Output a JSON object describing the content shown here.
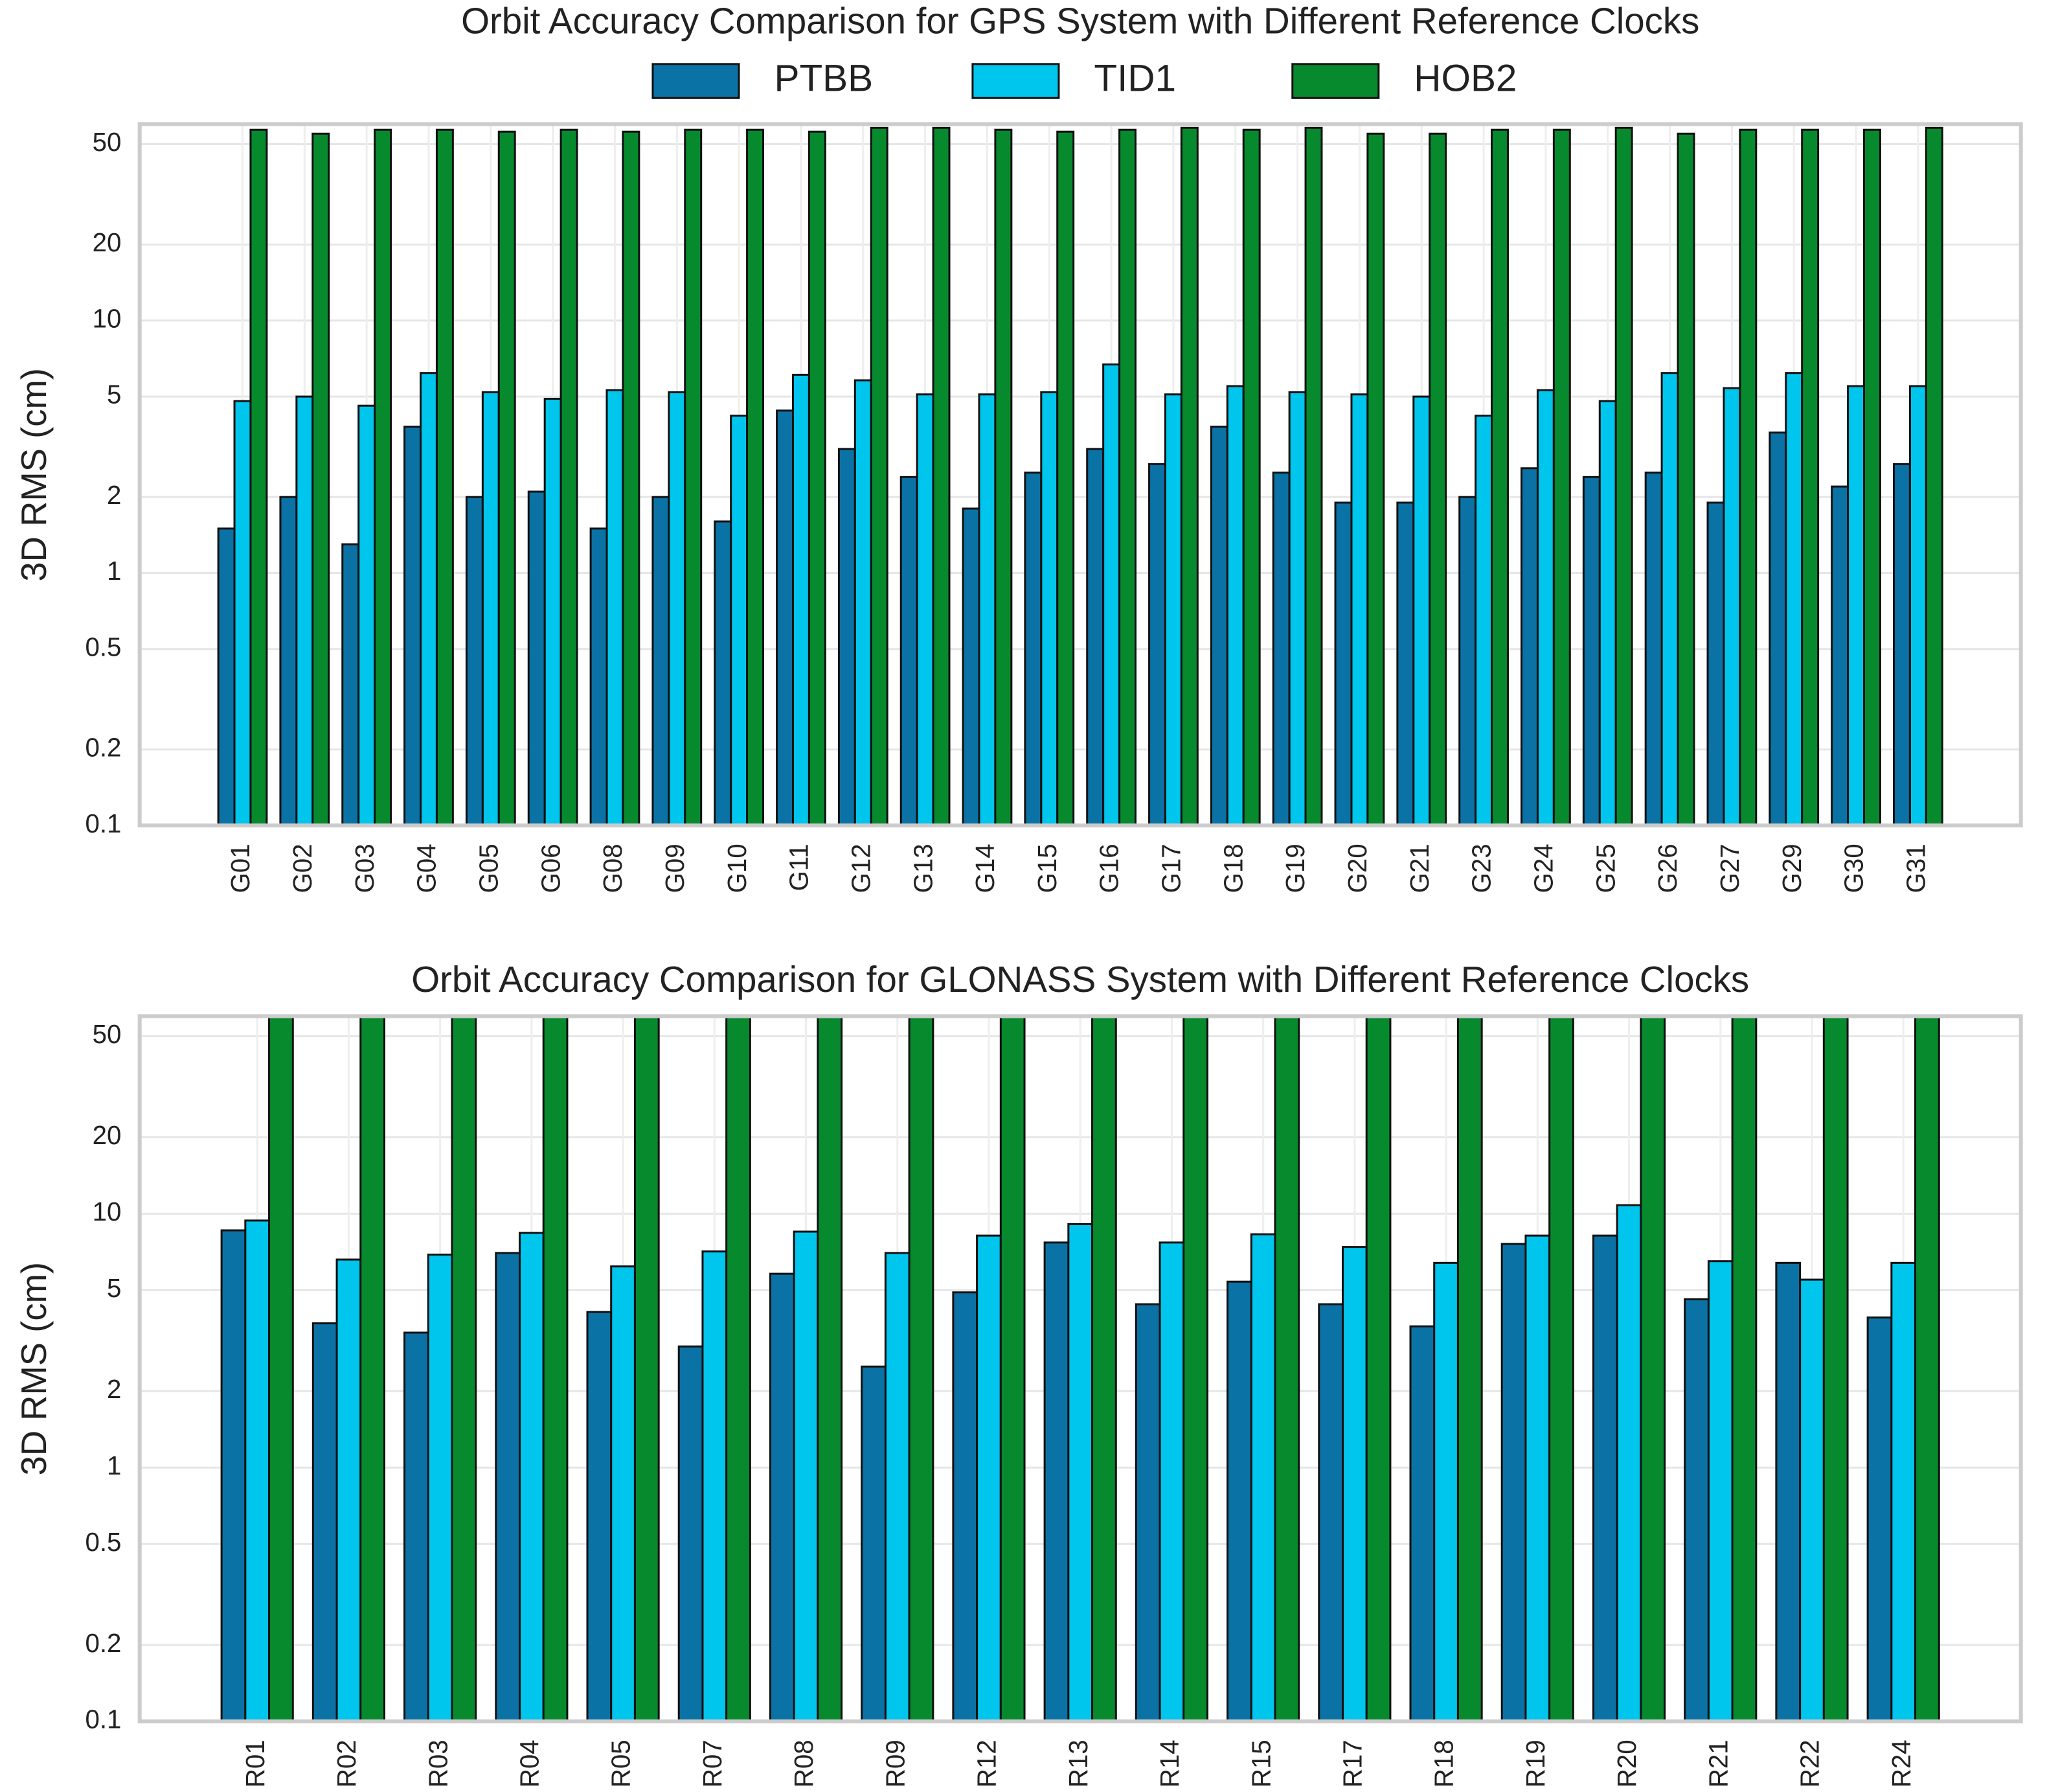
{
  "chart_data": [
    {
      "type": "bar",
      "title": "Orbit Accuracy Comparison for GPS System with Different Reference Clocks",
      "ylabel": "3D RMS (cm)",
      "log_scale": true,
      "grid": true,
      "legend": "top",
      "categories": [
        "G01",
        "G02",
        "G03",
        "G04",
        "G05",
        "G06",
        "G08",
        "G09",
        "G10",
        "G11",
        "G12",
        "G13",
        "G14",
        "G15",
        "G16",
        "G17",
        "G18",
        "G19",
        "G20",
        "G21",
        "G23",
        "G24",
        "G25",
        "G26",
        "G27",
        "G29",
        "G30",
        "G31"
      ],
      "series": [
        {
          "name": "PTBB",
          "color": "#0b72a6",
          "values": [
            1.5,
            2.0,
            1.3,
            3.8,
            2.0,
            2.1,
            1.5,
            2.0,
            1.6,
            4.4,
            3.1,
            2.4,
            1.8,
            2.5,
            3.1,
            2.7,
            3.8,
            2.5,
            1.9,
            1.9,
            2.0,
            2.6,
            2.4,
            2.5,
            1.9,
            3.6,
            2.2,
            2.7
          ]
        },
        {
          "name": "TID1",
          "color": "#00c5ec",
          "values": [
            4.8,
            5.0,
            4.6,
            6.2,
            5.2,
            4.9,
            5.3,
            5.2,
            4.2,
            6.1,
            5.8,
            5.1,
            5.1,
            5.2,
            6.7,
            5.1,
            5.5,
            5.2,
            5.1,
            5.0,
            4.2,
            5.3,
            4.8,
            6.2,
            5.4,
            6.2,
            5.5,
            5.5
          ]
        },
        {
          "name": "HOB2",
          "color": "#078a2e",
          "values": [
            57,
            55,
            57,
            57,
            56,
            57,
            56,
            57,
            57,
            56,
            58,
            58,
            57,
            56,
            57,
            58,
            57,
            58,
            55,
            55,
            57,
            57,
            58,
            55,
            57,
            57,
            57,
            58
          ]
        }
      ],
      "ylim": [
        0.1,
        60
      ],
      "yticks": [
        0.1,
        0.2,
        0.5,
        1,
        2,
        5,
        10,
        20,
        50
      ]
    },
    {
      "type": "bar",
      "title": "Orbit Accuracy Comparison for GLONASS System with Different Reference Clocks",
      "ylabel": "3D RMS (cm)",
      "log_scale": true,
      "grid": true,
      "categories": [
        "R01",
        "R02",
        "R03",
        "R04",
        "R05",
        "R07",
        "R08",
        "R09",
        "R12",
        "R13",
        "R14",
        "R15",
        "R17",
        "R18",
        "R19",
        "R20",
        "R21",
        "R22",
        "R24"
      ],
      "series": [
        {
          "color": "#0b72a6",
          "values": [
            8.6,
            3.7,
            3.4,
            7.0,
            4.1,
            3.0,
            5.8,
            2.5,
            4.9,
            7.7,
            4.4,
            5.4,
            4.4,
            3.6,
            7.6,
            8.2,
            4.6,
            6.4,
            3.9
          ]
        },
        {
          "color": "#00c5ec",
          "values": [
            9.4,
            6.6,
            6.9,
            8.4,
            6.2,
            7.1,
            8.5,
            7.0,
            8.2,
            9.1,
            7.7,
            8.3,
            7.4,
            6.4,
            8.2,
            10.8,
            6.5,
            5.5,
            6.4
          ]
        },
        {
          "color": "#078a2e",
          "values": [
            60,
            60,
            60,
            60,
            60,
            60,
            60,
            60,
            60,
            60,
            60,
            60,
            60,
            60,
            60,
            60,
            60,
            60,
            60
          ]
        }
      ],
      "ylim": [
        0.1,
        60
      ],
      "yticks": [
        0.1,
        0.2,
        0.5,
        1,
        2,
        5,
        10,
        20,
        50
      ]
    }
  ]
}
